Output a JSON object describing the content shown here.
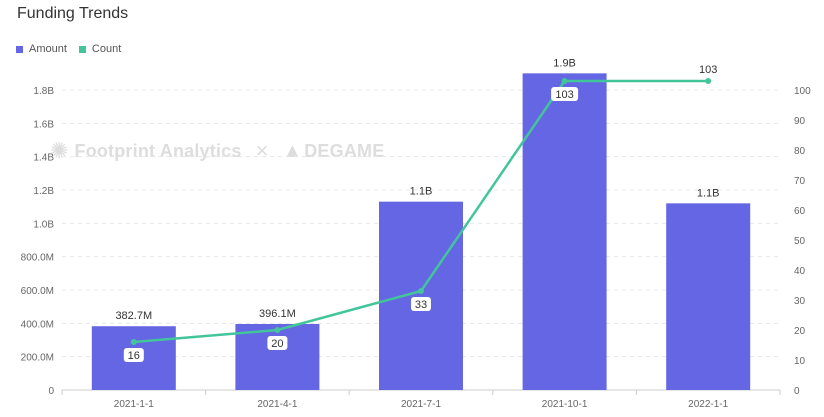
{
  "title": "Funding Trends",
  "watermark": {
    "left_text": "Footprint Analytics",
    "separator": "×",
    "right_text": "DEGAME"
  },
  "colors": {
    "amount": "#6466e3",
    "count": "#43c59b",
    "grid": "#e8e8e8",
    "axis": "#cccccc"
  },
  "chart_data": {
    "type": "bar",
    "title": "Funding Trends",
    "categories": [
      "2021-1-1",
      "2021-4-1",
      "2021-7-1",
      "2021-10-1",
      "2022-1-1"
    ],
    "series": [
      {
        "name": "Amount",
        "type": "bar",
        "axis": "left",
        "values": [
          382700000,
          396100000,
          1130000000,
          1900000000,
          1120000000
        ],
        "labels": [
          "382.7M",
          "396.1M",
          "1.1B",
          "1.9B",
          "1.1B"
        ]
      },
      {
        "name": "Count",
        "type": "line",
        "axis": "right",
        "values": [
          16,
          20,
          33,
          103,
          103
        ],
        "labels": [
          "16",
          "20",
          "33",
          "103",
          "103"
        ]
      }
    ],
    "y_left": {
      "range": [
        0,
        1800000000
      ],
      "ticks": [
        0,
        200000000,
        400000000,
        600000000,
        800000000,
        1000000000,
        1200000000,
        1400000000,
        1600000000,
        1800000000
      ],
      "tick_labels": [
        "0",
        "200.0M",
        "400.0M",
        "600.0M",
        "800.0M",
        "1.0B",
        "1.2B",
        "1.4B",
        "1.6B",
        "1.8B"
      ]
    },
    "y_right": {
      "range": [
        0,
        100
      ],
      "ticks": [
        0,
        10,
        20,
        30,
        40,
        50,
        60,
        70,
        80,
        90,
        100
      ],
      "tick_labels": [
        "0",
        "10",
        "20",
        "30",
        "40",
        "50",
        "60",
        "70",
        "80",
        "90",
        "100"
      ]
    },
    "grid": true,
    "legend": "top-left"
  }
}
